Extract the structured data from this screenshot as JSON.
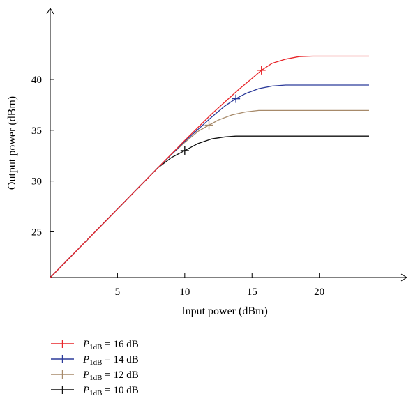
{
  "chart_data": {
    "type": "line",
    "xlabel": "Input power (dBm)",
    "ylabel": "Output power (dBm)",
    "xlim": [
      0,
      26.5
    ],
    "ylim": [
      20.5,
      47
    ],
    "xticks": [
      5,
      10,
      15,
      20
    ],
    "yticks": [
      25,
      30,
      35,
      40
    ],
    "grid": false,
    "legend_position": "bottom-left",
    "series": [
      {
        "name_prefix": "P",
        "name_sub": "1dB",
        "name_suffix": " = 16 dB",
        "color": "#e8262a",
        "x": [
          0,
          8,
          10,
          12,
          13,
          14,
          15,
          15.7,
          16.5,
          17.5,
          18.5,
          19.5,
          20.5,
          22,
          23.7
        ],
        "y": [
          20.5,
          31.3,
          34.0,
          36.6,
          37.8,
          39.0,
          40.1,
          40.9,
          41.6,
          42.0,
          42.25,
          42.3,
          42.3,
          42.3,
          42.3
        ],
        "marker": {
          "x": 15.7,
          "y": 40.9
        }
      },
      {
        "name_prefix": "P",
        "name_sub": "1dB",
        "name_suffix": " = 14 dB",
        "color": "#2b3a9a",
        "x": [
          0,
          8,
          10,
          11,
          12,
          13,
          13.8,
          14.5,
          15.5,
          16.5,
          17.5,
          18.5,
          20,
          23.7
        ],
        "y": [
          20.5,
          31.3,
          33.9,
          35.1,
          36.3,
          37.4,
          38.1,
          38.6,
          39.1,
          39.35,
          39.45,
          39.45,
          39.45,
          39.45
        ],
        "marker": {
          "x": 13.8,
          "y": 38.1
        }
      },
      {
        "name_prefix": "P",
        "name_sub": "1dB",
        "name_suffix": " = 12 dB",
        "color": "#a78a6a",
        "x": [
          0,
          8,
          9,
          10,
          11,
          11.8,
          12.5,
          13.5,
          14.5,
          15.5,
          16.5,
          18,
          23.7
        ],
        "y": [
          20.5,
          31.3,
          32.6,
          33.8,
          34.9,
          35.5,
          36.0,
          36.5,
          36.8,
          36.95,
          36.95,
          36.95,
          36.95
        ],
        "marker": {
          "x": 11.8,
          "y": 35.5
        }
      },
      {
        "name_prefix": "P",
        "name_sub": "1dB",
        "name_suffix": " = 10 dB",
        "color": "#111111",
        "x": [
          0,
          8,
          9,
          10,
          11,
          12,
          13,
          13.8,
          14.5,
          16,
          23.7
        ],
        "y": [
          20.5,
          31.3,
          32.3,
          33.0,
          33.7,
          34.15,
          34.35,
          34.42,
          34.42,
          34.42,
          34.42
        ],
        "marker": {
          "x": 10.0,
          "y": 33.0
        }
      }
    ]
  }
}
